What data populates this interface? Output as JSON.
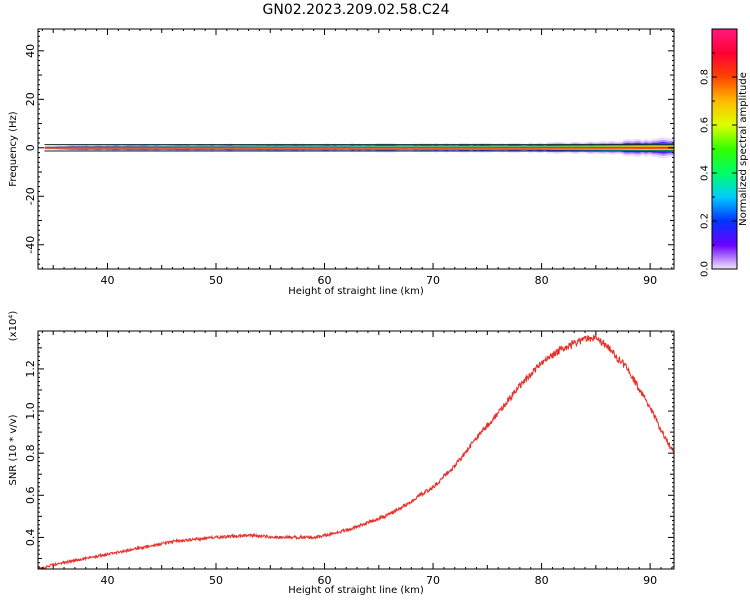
{
  "title": "GN02.2023.209.02.58.C24",
  "chart_data": [
    {
      "type": "heatmap",
      "xlabel": "Height of straight line (km)",
      "ylabel": "Frequency (Hz)",
      "xlim": [
        33.6,
        92.2
      ],
      "ylim": [
        -50,
        49
      ],
      "xticks": [
        40,
        50,
        60,
        70,
        80,
        90
      ],
      "yticks": [
        40,
        20,
        0,
        -20,
        -40
      ],
      "x_start": 34.2,
      "colorbar": {
        "label": "Normalized spectral amplitude",
        "range": [
          0,
          1
        ],
        "ticks": [
          "0.0",
          "0.2",
          "0.4",
          "0.6",
          "0.8"
        ]
      },
      "band_halfwidth_hz": [
        {
          "x": 34.2,
          "hz": 0.6
        },
        {
          "x": 37.0,
          "hz": 1.2
        },
        {
          "x": 43.0,
          "hz": 1.4
        },
        {
          "x": 52.0,
          "hz": 1.6
        },
        {
          "x": 62.0,
          "hz": 1.7
        },
        {
          "x": 70.0,
          "hz": 1.8
        },
        {
          "x": 80.0,
          "hz": 2.0
        },
        {
          "x": 86.0,
          "hz": 2.6
        },
        {
          "x": 90.0,
          "hz": 3.6
        },
        {
          "x": 92.2,
          "hz": 4.2
        }
      ]
    },
    {
      "type": "line",
      "xlabel": "Height of straight line (km)",
      "ylabel": "SNR (10 * v/v)",
      "y_multiplier": "(x10⁴)",
      "xlim": [
        33.6,
        92.2
      ],
      "ylim": [
        0.25,
        1.38
      ],
      "xticks": [
        40,
        50,
        60,
        70,
        80,
        90
      ],
      "yticks": [
        0.4,
        0.6,
        0.8,
        1.0,
        1.2
      ],
      "series": [
        {
          "name": "SNR",
          "color": "#e8302a",
          "points": [
            [
              33.6,
              0.25
            ],
            [
              35,
              0.27
            ],
            [
              37,
              0.29
            ],
            [
              40,
              0.32
            ],
            [
              43,
              0.35
            ],
            [
              46,
              0.38
            ],
            [
              48,
              0.39
            ],
            [
              50,
              0.4
            ],
            [
              53,
              0.41
            ],
            [
              56,
              0.4
            ],
            [
              59,
              0.4
            ],
            [
              61,
              0.42
            ],
            [
              63,
              0.45
            ],
            [
              66,
              0.51
            ],
            [
              68,
              0.57
            ],
            [
              70,
              0.64
            ],
            [
              72,
              0.74
            ],
            [
              74,
              0.87
            ],
            [
              76,
              0.99
            ],
            [
              78,
              1.12
            ],
            [
              80,
              1.23
            ],
            [
              82,
              1.3
            ],
            [
              84,
              1.34
            ],
            [
              85,
              1.35
            ],
            [
              86,
              1.31
            ],
            [
              87,
              1.25
            ],
            [
              88,
              1.2
            ],
            [
              89,
              1.1
            ],
            [
              90,
              1.02
            ],
            [
              91,
              0.91
            ],
            [
              92.2,
              0.8
            ]
          ]
        }
      ]
    }
  ]
}
